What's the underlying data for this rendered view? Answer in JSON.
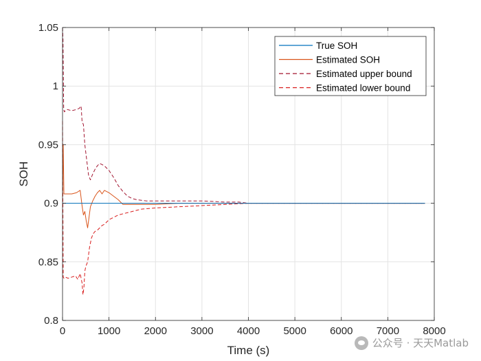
{
  "chart_data": {
    "type": "line",
    "title": "",
    "xlabel": "Time (s)",
    "ylabel": "SOH",
    "xlim": [
      0,
      8000
    ],
    "ylim": [
      0.8,
      1.05
    ],
    "xticks": [
      0,
      1000,
      2000,
      3000,
      4000,
      5000,
      6000,
      7000,
      8000
    ],
    "yticks": [
      0.8,
      0.85,
      0.9,
      0.95,
      1,
      1.05
    ],
    "xtick_labels": [
      "0",
      "1000",
      "2000",
      "3000",
      "4000",
      "5000",
      "6000",
      "7000",
      "8000"
    ],
    "ytick_labels": [
      "0.8",
      "0.85",
      "0.9",
      "0.95",
      "1",
      "1.05"
    ],
    "grid": true,
    "legend_position": "top-right",
    "series": [
      {
        "name": "True SOH",
        "style": "solid",
        "color": "#0072BD",
        "x": [
          0,
          7800
        ],
        "y": [
          0.9,
          0.9
        ]
      },
      {
        "name": "Estimated SOH",
        "style": "solid",
        "color": "#D95319",
        "x": [
          0,
          15,
          30,
          60,
          120,
          200,
          300,
          380,
          420,
          450,
          480,
          510,
          540,
          570,
          600,
          650,
          700,
          750,
          800,
          850,
          900,
          1000,
          1100,
          1200,
          1300,
          1400,
          1500,
          1700,
          2000,
          2500,
          3000,
          3500,
          4000,
          5000,
          6000,
          7000,
          7800
        ],
        "y": [
          0.905,
          0.95,
          0.908,
          0.908,
          0.908,
          0.908,
          0.909,
          0.911,
          0.898,
          0.89,
          0.893,
          0.885,
          0.879,
          0.888,
          0.897,
          0.902,
          0.906,
          0.909,
          0.911,
          0.908,
          0.911,
          0.909,
          0.906,
          0.903,
          0.899,
          0.899,
          0.899,
          0.899,
          0.899,
          0.9,
          0.9,
          0.9,
          0.9,
          0.9,
          0.9,
          0.9,
          0.9
        ]
      },
      {
        "name": "Estimated upper bound",
        "style": "dashed",
        "color": "#A2142F",
        "x": [
          0,
          10,
          25,
          40,
          60,
          100,
          200,
          300,
          360,
          400,
          420,
          450,
          480,
          520,
          560,
          600,
          650,
          700,
          750,
          800,
          900,
          1000,
          1100,
          1200,
          1300,
          1400,
          1500,
          1600,
          1800,
          2000,
          2500,
          3000,
          3500,
          3800,
          4000,
          5000,
          6000,
          7000,
          7800
        ],
        "y": [
          1.05,
          1.04,
          0.98,
          0.978,
          0.979,
          0.98,
          0.979,
          0.98,
          0.981,
          0.983,
          0.97,
          0.967,
          0.95,
          0.937,
          0.924,
          0.92,
          0.925,
          0.929,
          0.932,
          0.934,
          0.932,
          0.928,
          0.922,
          0.915,
          0.91,
          0.906,
          0.904,
          0.903,
          0.902,
          0.902,
          0.902,
          0.902,
          0.901,
          0.901,
          0.9,
          0.9,
          0.9,
          0.9,
          0.9
        ]
      },
      {
        "name": "Estimated lower bound",
        "style": "dashed",
        "color": "#D81B1B",
        "x": [
          0,
          15,
          30,
          60,
          120,
          200,
          280,
          330,
          380,
          420,
          440,
          460,
          480,
          500,
          540,
          580,
          620,
          660,
          700,
          750,
          800,
          850,
          900,
          950,
          1000,
          1100,
          1200,
          1300,
          1400,
          1500,
          1700,
          2000,
          2500,
          3000,
          3500,
          4000,
          5000,
          6000,
          7000,
          7800
        ],
        "y": [
          0.97,
          0.837,
          0.836,
          0.837,
          0.836,
          0.837,
          0.838,
          0.835,
          0.84,
          0.832,
          0.822,
          0.828,
          0.842,
          0.846,
          0.85,
          0.862,
          0.87,
          0.874,
          0.876,
          0.877,
          0.879,
          0.881,
          0.882,
          0.884,
          0.886,
          0.888,
          0.89,
          0.891,
          0.892,
          0.893,
          0.895,
          0.896,
          0.897,
          0.898,
          0.899,
          0.9,
          0.9,
          0.9,
          0.9,
          0.9
        ]
      }
    ]
  },
  "watermark": {
    "text": "公众号 · 天天Matlab"
  }
}
